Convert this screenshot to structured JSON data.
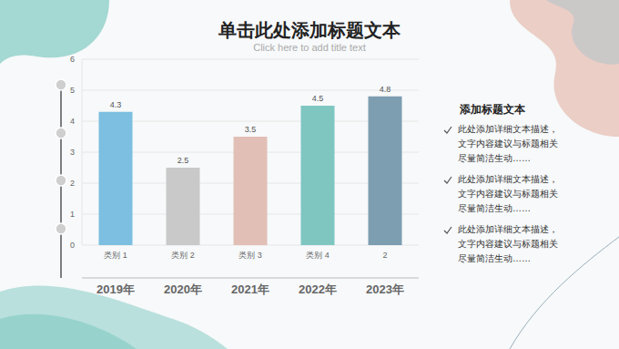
{
  "chart_data": {
    "type": "bar",
    "title": "单击此处添加标题文本",
    "subtitle": "Click here to add title text",
    "categories": [
      "类别 1",
      "类别 2",
      "类别 3",
      "类别 4",
      "2"
    ],
    "values": [
      4.3,
      2.5,
      3.5,
      4.5,
      4.8
    ],
    "colors": [
      "#7cbfe0",
      "#c9c9c9",
      "#e2bfb6",
      "#7fc6c1",
      "#7d9db1"
    ],
    "ylim": [
      0,
      6
    ],
    "yticks": [
      0,
      1,
      2,
      3,
      4,
      5,
      6
    ],
    "grid": true,
    "data_labels": true,
    "annotations": [
      "2019年",
      "2020年",
      "2021年",
      "2022年",
      "2023年"
    ]
  },
  "sidebar": {
    "title": "添加标题文本",
    "bullets": [
      "此处添加详细文本描述，文字内容建议与标题相关尽量简洁生动……",
      "此处添加详细文本描述，文字内容建议与标题相关尽量简洁生动……",
      "此处添加详细文本描述，文字内容建议与标题相关尽量简洁生动……"
    ]
  }
}
